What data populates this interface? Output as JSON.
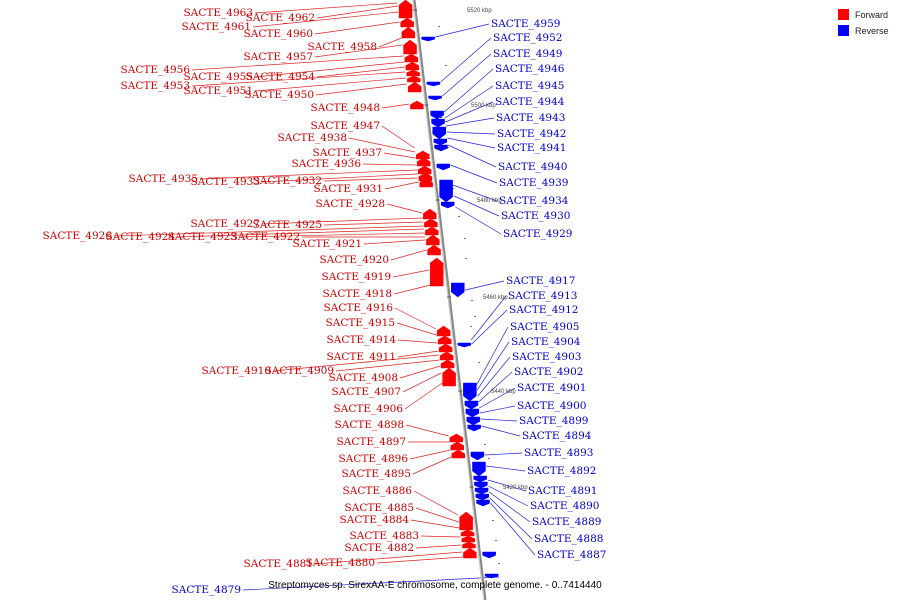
{
  "colors": {
    "forward": "#ff0000",
    "reverse": "#0000ff",
    "forward_label": "#cc0000",
    "reverse_label": "#0000cc",
    "axis": "#888888"
  },
  "legend": {
    "forward_label": "Forward",
    "reverse_label": "Reverse"
  },
  "caption": "Streptomyces sp. SirexAA-E chromosome, complete genome. - 0..7414440",
  "ticks": [
    "5520 kbp",
    "5500 kbp",
    "5480 kbp",
    "5460 kbp",
    "5440 kbp",
    "5420 kbp"
  ],
  "forward_genes": [
    "SACTE_4963",
    "SACTE_4962",
    "SACTE_4961",
    "SACTE_4960",
    "SACTE_4958",
    "SACTE_4957",
    "SACTE_4956",
    "SACTE_4955",
    "SACTE_4954",
    "SACTE_4953",
    "SACTE_4951",
    "SACTE_4950",
    "SACTE_4948",
    "SACTE_4947",
    "SACTE_4938",
    "SACTE_4937",
    "SACTE_4936",
    "SACTE_4935",
    "SACTE_4933",
    "SACTE_4932",
    "SACTE_4931",
    "SACTE_4928",
    "SACTE_4927",
    "SACTE_4925",
    "SACTE_4926",
    "SACTE_4924",
    "SACTE_4923",
    "SACTE_4922",
    "SACTE_4921",
    "SACTE_4920",
    "SACTE_4919",
    "SACTE_4918",
    "SACTE_4916",
    "SACTE_4915",
    "SACTE_4914",
    "SACTE_4911",
    "SACTE_4910",
    "SACTE_4909",
    "SACTE_4908",
    "SACTE_4907",
    "SACTE_4906",
    "SACTE_4898",
    "SACTE_4897",
    "SACTE_4896",
    "SACTE_4895",
    "SACTE_4886",
    "SACTE_4885",
    "SACTE_4884",
    "SACTE_4883",
    "SACTE_4882",
    "SACTE_4881",
    "SACTE_4880"
  ],
  "reverse_genes": [
    "SACTE_4959",
    "SACTE_4952",
    "SACTE_4949",
    "SACTE_4946",
    "SACTE_4945",
    "SACTE_4944",
    "SACTE_4943",
    "SACTE_4942",
    "SACTE_4941",
    "SACTE_4940",
    "SACTE_4939",
    "SACTE_4934",
    "SACTE_4930",
    "SACTE_4929",
    "SACTE_4917",
    "SACTE_4913",
    "SACTE_4912",
    "SACTE_4905",
    "SACTE_4904",
    "SACTE_4903",
    "SACTE_4902",
    "SACTE_4901",
    "SACTE_4900",
    "SACTE_4899",
    "SACTE_4894",
    "SACTE_4893",
    "SACTE_4892",
    "SACTE_4891",
    "SACTE_4890",
    "SACTE_4889",
    "SACTE_4888",
    "SACTE_4887",
    "SACTE_4879"
  ]
}
